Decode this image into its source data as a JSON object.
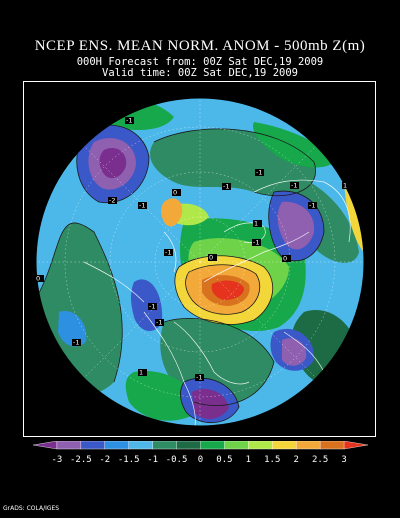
{
  "header": {
    "title": "NCEP ENS. MEAN NORM. ANOM - 500mb Z(m)",
    "forecast_line": "000H Forecast from: 00Z Sat DEC,19 2009",
    "valid_line": "Valid time: 00Z Sat DEC,19 2009"
  },
  "map": {
    "projection": "polar-stereographic-north",
    "contour_labels": [
      {
        "id": "l1",
        "text": "-1"
      },
      {
        "id": "l2",
        "text": "-2"
      },
      {
        "id": "l3",
        "text": "-1"
      },
      {
        "id": "l4",
        "text": "-1"
      },
      {
        "id": "l5",
        "text": "-1"
      },
      {
        "id": "l6",
        "text": "-1"
      },
      {
        "id": "l7",
        "text": "-1"
      },
      {
        "id": "l8",
        "text": "0"
      },
      {
        "id": "l9",
        "text": "1"
      },
      {
        "id": "l10",
        "text": "1"
      },
      {
        "id": "l11",
        "text": "0"
      },
      {
        "id": "l12",
        "text": "-1"
      },
      {
        "id": "l13",
        "text": "-1"
      },
      {
        "id": "l14",
        "text": "-1"
      },
      {
        "id": "l15",
        "text": "0"
      },
      {
        "id": "l16",
        "text": "-1"
      },
      {
        "id": "l17",
        "text": "1"
      },
      {
        "id": "l18",
        "text": "-1"
      },
      {
        "id": "l19",
        "text": "-1"
      },
      {
        "id": "l20",
        "text": "0"
      }
    ]
  },
  "colorbar": {
    "ticks": [
      "-3",
      "-2.5",
      "-2",
      "-1.5",
      "-1",
      "-0.5",
      "0",
      "0.5",
      "1",
      "1.5",
      "2",
      "2.5",
      "3"
    ],
    "colors": [
      "#7a2f8f",
      "#8f5fb0",
      "#3a58c8",
      "#2e90e0",
      "#4fb8e8",
      "#2f8b63",
      "#1c6b45",
      "#16a84a",
      "#6fd34a",
      "#b0e84a",
      "#f3d73a",
      "#f2a93a",
      "#d8721f",
      "#e5331d"
    ]
  },
  "footer": {
    "credit": "GrADS: COLA/IGES"
  }
}
